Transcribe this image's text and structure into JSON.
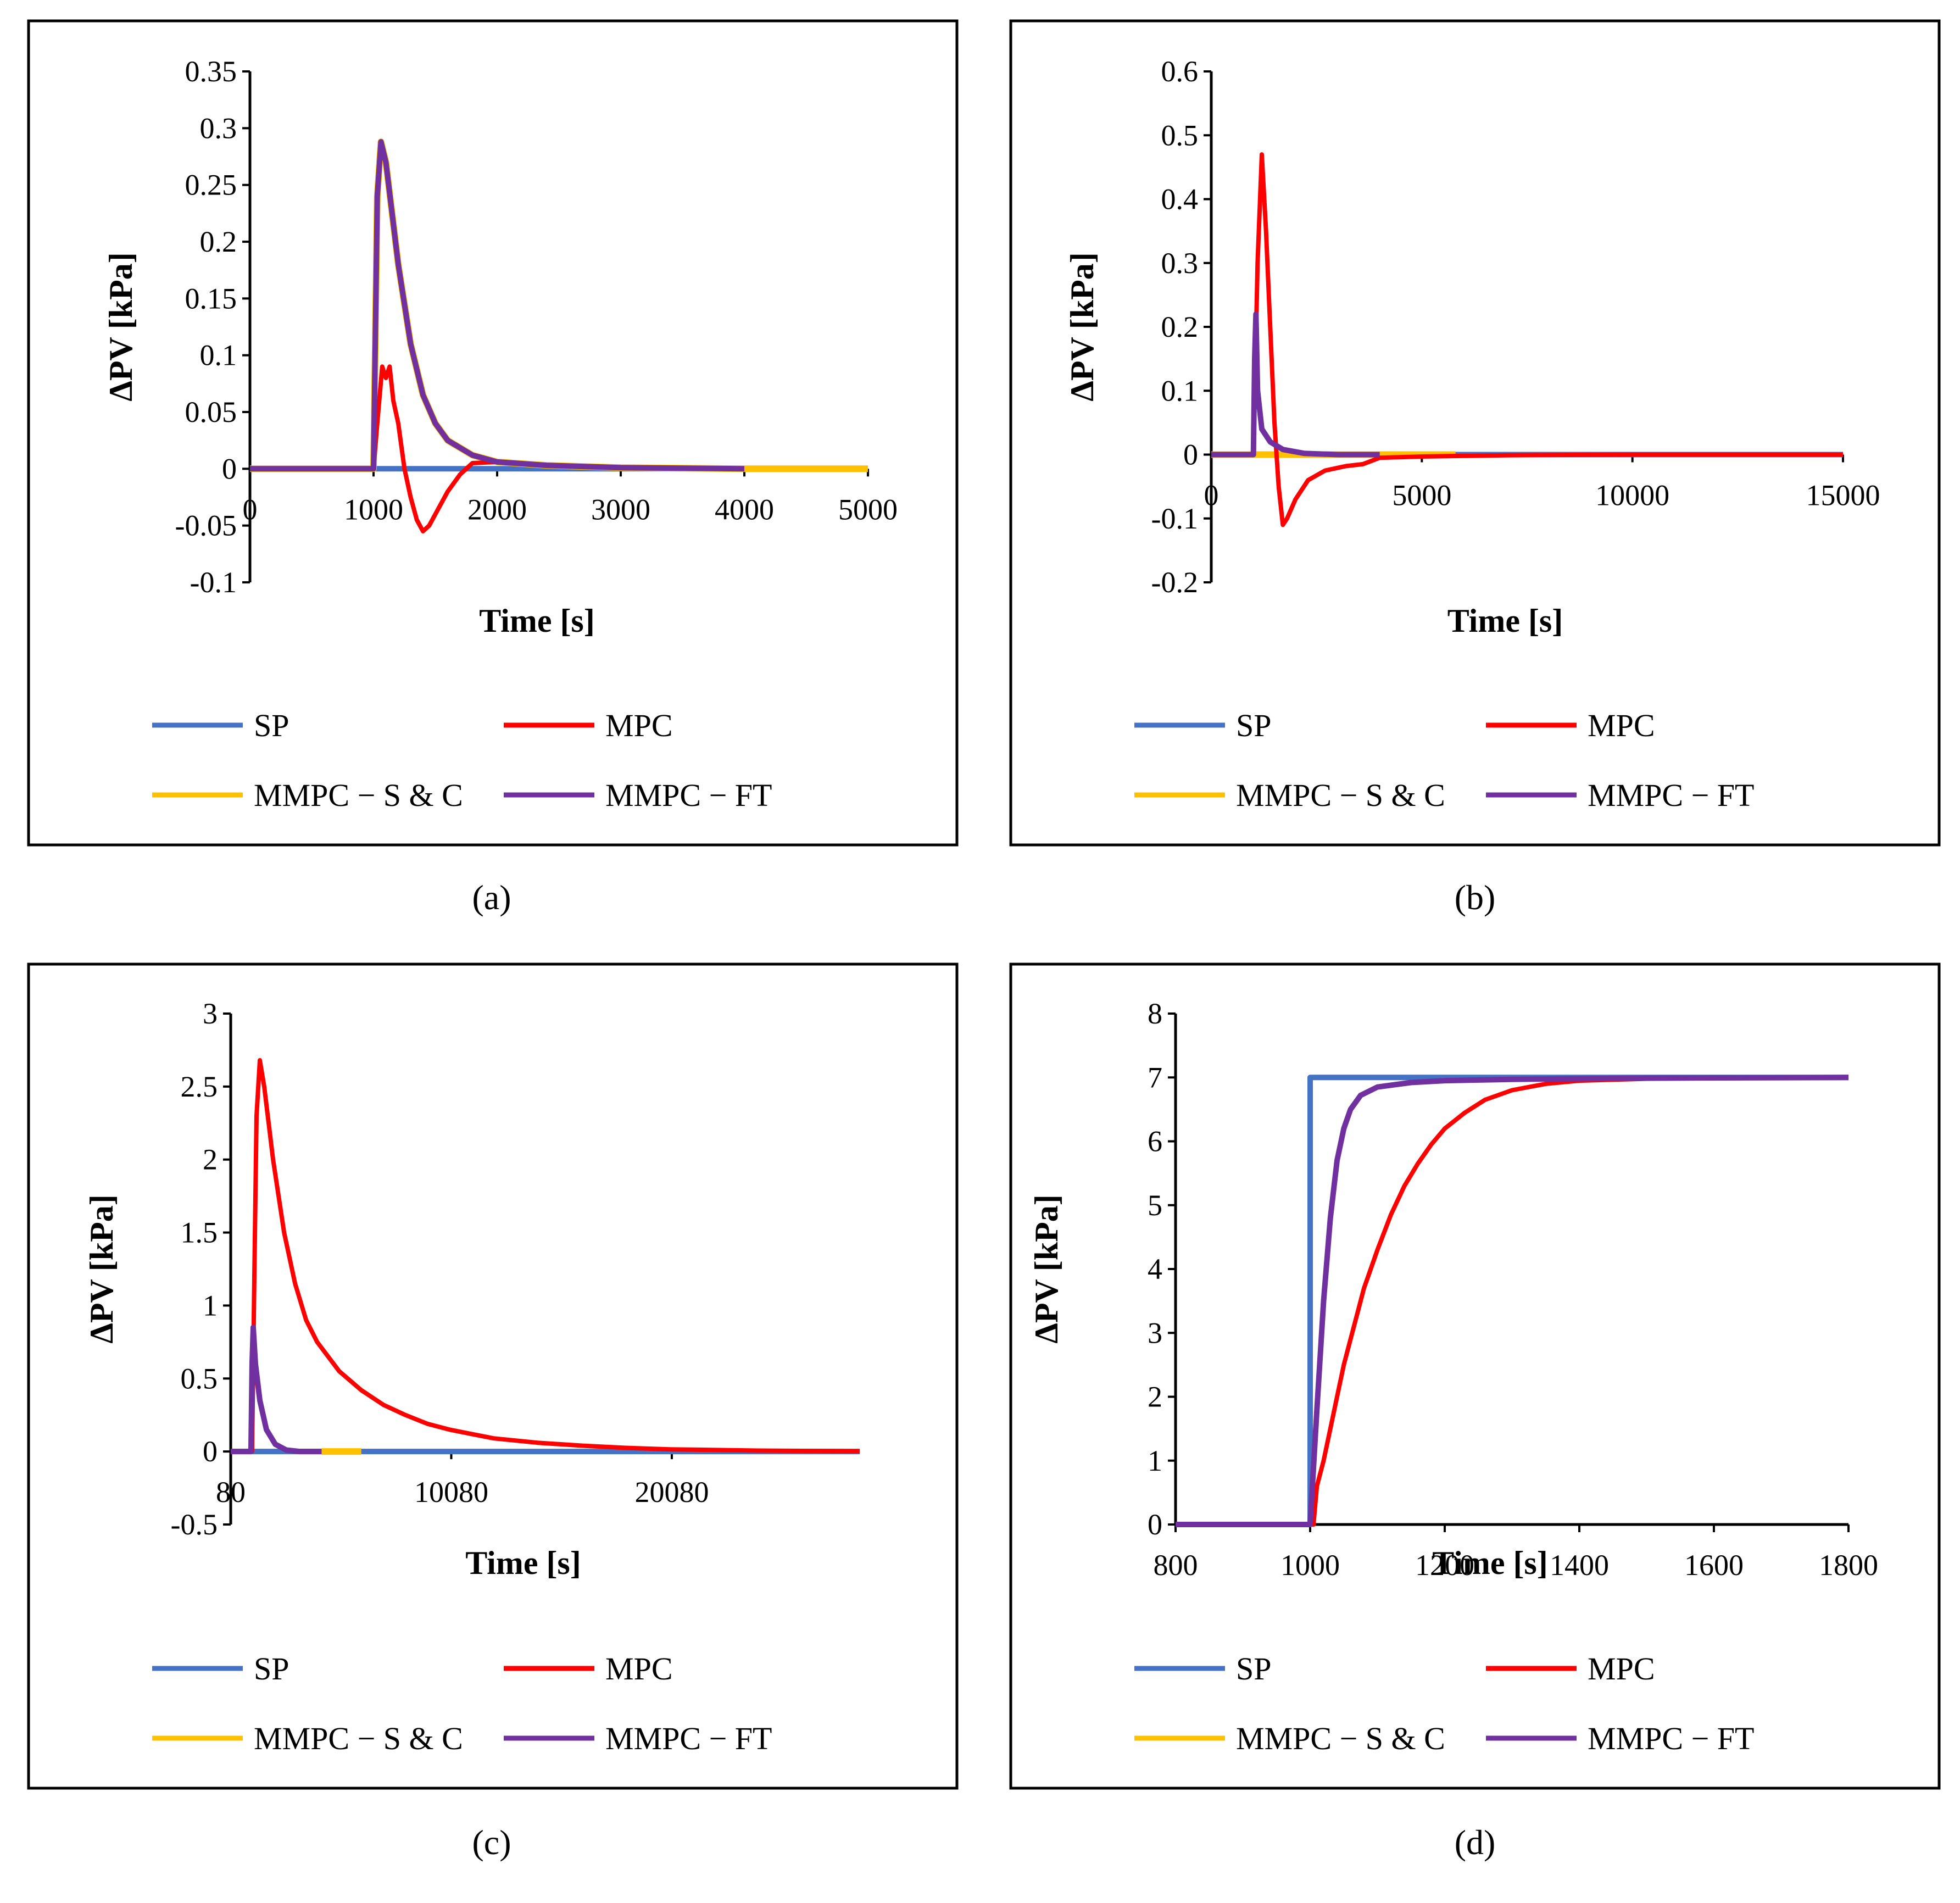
{
  "legend": {
    "entries": [
      {
        "name": "SP",
        "color": "#4472C4"
      },
      {
        "name": "MPC",
        "color": "#FF0000"
      },
      {
        "name": "MMPC − S & C",
        "color": "#FFC000"
      },
      {
        "name": "MMPC − FT",
        "color": "#7030A0"
      }
    ]
  },
  "chart_data": [
    {
      "panel": "(a)",
      "type": "line",
      "xlabel": "Time [s]",
      "ylabel": "ΔPV [kPa]",
      "xlim": [
        0,
        5000
      ],
      "ylim": [
        -0.1,
        0.35
      ],
      "x_ticks": [
        0,
        1000,
        2000,
        3000,
        4000,
        5000
      ],
      "x_tick_labels": [
        "0",
        "1000",
        "2000",
        "3000",
        "4000",
        "5000"
      ],
      "y_ticks": [
        -0.1,
        -0.05,
        0,
        0.05,
        0.1,
        0.15,
        0.2,
        0.25,
        0.3,
        0.35
      ],
      "y_tick_labels": [
        "-0.1",
        "-0.05",
        "0",
        "0.05",
        "0.1",
        "0.15",
        "0.2",
        "0.25",
        "0.3",
        "0.35"
      ],
      "series": [
        {
          "name": "SP",
          "points": [
            [
              0,
              0
            ],
            [
              5000,
              0
            ]
          ]
        },
        {
          "name": "MMPC − S & C",
          "points": [
            [
              0,
              0
            ],
            [
              1000,
              0
            ],
            [
              1030,
              0.24
            ],
            [
              1060,
              0.288
            ],
            [
              1100,
              0.27
            ],
            [
              1200,
              0.18
            ],
            [
              1300,
              0.11
            ],
            [
              1400,
              0.065
            ],
            [
              1500,
              0.04
            ],
            [
              1600,
              0.025
            ],
            [
              1800,
              0.012
            ],
            [
              2000,
              0.006
            ],
            [
              2400,
              0.003
            ],
            [
              3000,
              0.001
            ],
            [
              4000,
              0
            ],
            [
              5000,
              0
            ]
          ]
        },
        {
          "name": "MPC",
          "points": [
            [
              0,
              0
            ],
            [
              1000,
              0
            ],
            [
              1030,
              0.04
            ],
            [
              1070,
              0.09
            ],
            [
              1100,
              0.08
            ],
            [
              1130,
              0.09
            ],
            [
              1160,
              0.06
            ],
            [
              1200,
              0.04
            ],
            [
              1250,
              0.0
            ],
            [
              1300,
              -0.025
            ],
            [
              1350,
              -0.045
            ],
            [
              1400,
              -0.055
            ],
            [
              1450,
              -0.05
            ],
            [
              1500,
              -0.04
            ],
            [
              1600,
              -0.02
            ],
            [
              1700,
              -0.005
            ],
            [
              1800,
              0.005
            ],
            [
              2000,
              0.006
            ],
            [
              2300,
              0.004
            ],
            [
              2600,
              0.002
            ],
            [
              3000,
              0.001
            ],
            [
              4000,
              0
            ]
          ]
        },
        {
          "name": "MMPC − FT",
          "points": [
            [
              0,
              0
            ],
            [
              1000,
              0
            ],
            [
              1030,
              0.24
            ],
            [
              1060,
              0.288
            ],
            [
              1100,
              0.27
            ],
            [
              1200,
              0.18
            ],
            [
              1300,
              0.11
            ],
            [
              1400,
              0.065
            ],
            [
              1500,
              0.04
            ],
            [
              1600,
              0.025
            ],
            [
              1800,
              0.012
            ],
            [
              2000,
              0.006
            ],
            [
              2400,
              0.003
            ],
            [
              3000,
              0.001
            ],
            [
              4000,
              0
            ]
          ]
        }
      ]
    },
    {
      "panel": "(b)",
      "type": "line",
      "xlabel": "Time [s]",
      "ylabel": "ΔPV [kPa]",
      "xlim": [
        0,
        15000
      ],
      "ylim": [
        -0.2,
        0.6
      ],
      "x_ticks": [
        0,
        5000,
        10000,
        15000
      ],
      "x_tick_labels": [
        "0",
        "5000",
        "10000",
        "15000"
      ],
      "y_ticks": [
        -0.2,
        -0.1,
        0,
        0.1,
        0.2,
        0.3,
        0.4,
        0.5,
        0.6
      ],
      "y_tick_labels": [
        "-0.2",
        "-0.1",
        "0",
        "0.1",
        "0.2",
        "0.3",
        "0.4",
        "0.5",
        "0.6"
      ],
      "series": [
        {
          "name": "SP",
          "points": [
            [
              0,
              0
            ],
            [
              15000,
              0
            ]
          ]
        },
        {
          "name": "MMPC − S & C",
          "points": [
            [
              0,
              0
            ],
            [
              4000,
              0
            ],
            [
              5800,
              0
            ]
          ]
        },
        {
          "name": "MPC",
          "points": [
            [
              0,
              0
            ],
            [
              1000,
              0
            ],
            [
              1100,
              0.3
            ],
            [
              1200,
              0.47
            ],
            [
              1300,
              0.35
            ],
            [
              1400,
              0.2
            ],
            [
              1500,
              0.05
            ],
            [
              1600,
              -0.05
            ],
            [
              1700,
              -0.11
            ],
            [
              1800,
              -0.1
            ],
            [
              2000,
              -0.07
            ],
            [
              2300,
              -0.04
            ],
            [
              2700,
              -0.025
            ],
            [
              3200,
              -0.018
            ],
            [
              3600,
              -0.015
            ],
            [
              4000,
              -0.005
            ],
            [
              5000,
              -0.003
            ],
            [
              7000,
              -0.001
            ],
            [
              10000,
              0
            ],
            [
              15000,
              0
            ]
          ]
        },
        {
          "name": "MMPC − FT",
          "points": [
            [
              0,
              0
            ],
            [
              1000,
              0
            ],
            [
              1030,
              0.15
            ],
            [
              1060,
              0.22
            ],
            [
              1100,
              0.1
            ],
            [
              1200,
              0.04
            ],
            [
              1400,
              0.02
            ],
            [
              1700,
              0.008
            ],
            [
              2200,
              0.002
            ],
            [
              3000,
              0
            ],
            [
              4000,
              0
            ]
          ]
        }
      ]
    },
    {
      "panel": "(c)",
      "type": "line",
      "xlabel": "Time [s]",
      "ylabel": "ΔPV [kPa]",
      "xlim": [
        80,
        28600
      ],
      "ylim": [
        -0.5,
        3
      ],
      "x_ticks": [
        80,
        10080,
        20080
      ],
      "x_tick_labels": [
        "80",
        "10080",
        "20080"
      ],
      "y_ticks": [
        -0.5,
        0,
        0.5,
        1,
        1.5,
        2,
        2.5,
        3
      ],
      "y_tick_labels": [
        "-0.5",
        "0",
        "0.5",
        "1",
        "1.5",
        "2",
        "2.5",
        "3"
      ],
      "series": [
        {
          "name": "SP",
          "points": [
            [
              80,
              0
            ],
            [
              28600,
              0
            ]
          ]
        },
        {
          "name": "MMPC − S & C",
          "points": [
            [
              4200,
              0
            ],
            [
              6000,
              0
            ]
          ]
        },
        {
          "name": "MPC",
          "points": [
            [
              80,
              0
            ],
            [
              1050,
              0
            ],
            [
              1150,
              1.2
            ],
            [
              1250,
              2.3
            ],
            [
              1400,
              2.68
            ],
            [
              1600,
              2.5
            ],
            [
              2000,
              2.0
            ],
            [
              2500,
              1.5
            ],
            [
              3000,
              1.15
            ],
            [
              3500,
              0.9
            ],
            [
              4000,
              0.75
            ],
            [
              5000,
              0.55
            ],
            [
              6000,
              0.42
            ],
            [
              7000,
              0.32
            ],
            [
              8000,
              0.25
            ],
            [
              9000,
              0.19
            ],
            [
              10000,
              0.15
            ],
            [
              11000,
              0.12
            ],
            [
              12000,
              0.09
            ],
            [
              14000,
              0.06
            ],
            [
              16000,
              0.04
            ],
            [
              18000,
              0.025
            ],
            [
              20000,
              0.015
            ],
            [
              24000,
              0.006
            ],
            [
              28600,
              0.002
            ]
          ]
        },
        {
          "name": "MMPC − FT",
          "points": [
            [
              80,
              0
            ],
            [
              1000,
              0
            ],
            [
              1050,
              0.6
            ],
            [
              1100,
              0.85
            ],
            [
              1200,
              0.6
            ],
            [
              1400,
              0.35
            ],
            [
              1700,
              0.15
            ],
            [
              2100,
              0.05
            ],
            [
              2600,
              0.01
            ],
            [
              3200,
              0
            ],
            [
              4200,
              0
            ]
          ]
        }
      ]
    },
    {
      "panel": "(d)",
      "type": "line",
      "xlabel": "Time [s]",
      "ylabel": "ΔPV [kPa]",
      "xlim": [
        800,
        1800
      ],
      "ylim": [
        0,
        8
      ],
      "x_ticks": [
        800,
        1000,
        1200,
        1400,
        1600,
        1800
      ],
      "x_tick_labels": [
        "800",
        "1000",
        "1200",
        "1400",
        "1600",
        "1800"
      ],
      "y_ticks": [
        0,
        1,
        2,
        3,
        4,
        5,
        6,
        7,
        8
      ],
      "y_tick_labels": [
        "0",
        "1",
        "2",
        "3",
        "4",
        "5",
        "6",
        "7",
        "8"
      ],
      "series": [
        {
          "name": "SP",
          "points": [
            [
              800,
              0
            ],
            [
              1000,
              0
            ],
            [
              1000,
              7
            ],
            [
              1800,
              7
            ]
          ]
        },
        {
          "name": "MMPC − S & C",
          "points": []
        },
        {
          "name": "MPC",
          "points": [
            [
              800,
              0
            ],
            [
              1005,
              0
            ],
            [
              1010,
              0.6
            ],
            [
              1020,
              1.0
            ],
            [
              1030,
              1.5
            ],
            [
              1040,
              2.0
            ],
            [
              1050,
              2.5
            ],
            [
              1060,
              2.9
            ],
            [
              1070,
              3.3
            ],
            [
              1080,
              3.7
            ],
            [
              1090,
              4.0
            ],
            [
              1100,
              4.3
            ],
            [
              1120,
              4.85
            ],
            [
              1140,
              5.3
            ],
            [
              1160,
              5.65
            ],
            [
              1180,
              5.95
            ],
            [
              1200,
              6.2
            ],
            [
              1230,
              6.45
            ],
            [
              1260,
              6.65
            ],
            [
              1300,
              6.8
            ],
            [
              1350,
              6.9
            ],
            [
              1400,
              6.95
            ],
            [
              1500,
              6.98
            ],
            [
              1800,
              7.0
            ]
          ]
        },
        {
          "name": "MMPC − FT",
          "points": [
            [
              800,
              0
            ],
            [
              1000,
              0
            ],
            [
              1010,
              1.8
            ],
            [
              1020,
              3.5
            ],
            [
              1030,
              4.8
            ],
            [
              1040,
              5.7
            ],
            [
              1050,
              6.2
            ],
            [
              1060,
              6.5
            ],
            [
              1075,
              6.72
            ],
            [
              1100,
              6.85
            ],
            [
              1150,
              6.92
            ],
            [
              1200,
              6.95
            ],
            [
              1300,
              6.97
            ],
            [
              1500,
              6.99
            ],
            [
              1800,
              7.0
            ]
          ]
        }
      ]
    }
  ]
}
